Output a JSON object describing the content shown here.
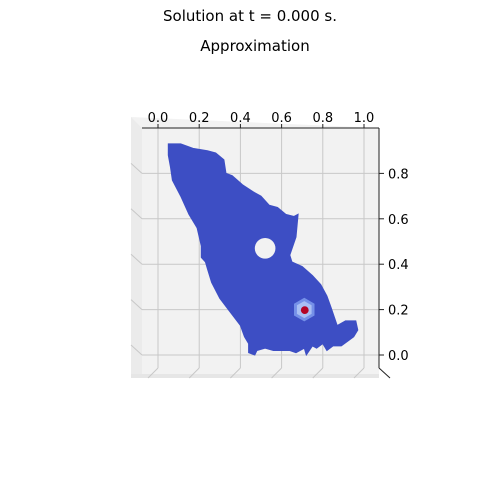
{
  "figure": {
    "suptitle": "Solution at t = 0.000 s.",
    "title": "Approximation"
  },
  "chart_data": {
    "type": "surface",
    "title": "Approximation",
    "suptitle": "Solution at t = 0.000 s.",
    "view": "3d-top-down",
    "colormap": "coolwarm",
    "x_ticks": [
      "0.0",
      "0.2",
      "0.4",
      "0.6",
      "0.8",
      "1.0"
    ],
    "y_ticks": [
      "0.0",
      "0.2",
      "0.4",
      "0.6",
      "0.8"
    ],
    "xlim": [
      -0.05,
      1.05
    ],
    "ylim": [
      -0.08,
      0.98
    ],
    "domain_outline": [
      [
        0.05,
        0.93
      ],
      [
        0.11,
        0.93
      ],
      [
        0.17,
        0.91
      ],
      [
        0.24,
        0.9
      ],
      [
        0.28,
        0.89
      ],
      [
        0.32,
        0.86
      ],
      [
        0.33,
        0.8
      ],
      [
        0.36,
        0.79
      ],
      [
        0.41,
        0.75
      ],
      [
        0.46,
        0.72
      ],
      [
        0.5,
        0.7
      ],
      [
        0.54,
        0.66
      ],
      [
        0.58,
        0.65
      ],
      [
        0.62,
        0.62
      ],
      [
        0.66,
        0.61
      ],
      [
        0.68,
        0.62
      ],
      [
        0.67,
        0.52
      ],
      [
        0.64,
        0.44
      ],
      [
        0.65,
        0.41
      ],
      [
        0.7,
        0.39
      ],
      [
        0.75,
        0.35
      ],
      [
        0.79,
        0.31
      ],
      [
        0.82,
        0.26
      ],
      [
        0.84,
        0.21
      ],
      [
        0.87,
        0.13
      ],
      [
        0.91,
        0.15
      ],
      [
        0.96,
        0.15
      ],
      [
        0.97,
        0.11
      ],
      [
        0.95,
        0.08
      ],
      [
        0.92,
        0.06
      ],
      [
        0.89,
        0.04
      ],
      [
        0.85,
        0.04
      ],
      [
        0.82,
        0.02
      ],
      [
        0.8,
        0.05
      ],
      [
        0.77,
        0.03
      ],
      [
        0.75,
        0.04
      ],
      [
        0.72,
        0.0
      ],
      [
        0.71,
        0.03
      ],
      [
        0.67,
        0.01
      ],
      [
        0.64,
        0.02
      ],
      [
        0.6,
        0.02
      ],
      [
        0.56,
        0.02
      ],
      [
        0.52,
        0.03
      ],
      [
        0.48,
        0.02
      ],
      [
        0.47,
        0.0
      ],
      [
        0.44,
        0.01
      ],
      [
        0.44,
        0.05
      ],
      [
        0.42,
        0.08
      ],
      [
        0.4,
        0.13
      ],
      [
        0.35,
        0.19
      ],
      [
        0.3,
        0.25
      ],
      [
        0.26,
        0.32
      ],
      [
        0.24,
        0.38
      ],
      [
        0.23,
        0.41
      ],
      [
        0.21,
        0.43
      ],
      [
        0.21,
        0.48
      ],
      [
        0.19,
        0.56
      ],
      [
        0.15,
        0.62
      ],
      [
        0.11,
        0.7
      ],
      [
        0.07,
        0.77
      ],
      [
        0.06,
        0.83
      ],
      [
        0.05,
        0.88
      ]
    ],
    "hole": {
      "cx": 0.52,
      "cy": 0.47,
      "r": 0.048
    },
    "peak": {
      "x": 0.71,
      "y": 0.2,
      "value": 1.0,
      "radius": 0.055
    },
    "base_value": 0.0,
    "colors": {
      "base": "#3d4ec4",
      "halo": "#7590e8",
      "halo_inner": "#a9bff4",
      "peak": "#b40426",
      "pane": "#f2f2f2",
      "grid": "#c8c8c8"
    }
  }
}
